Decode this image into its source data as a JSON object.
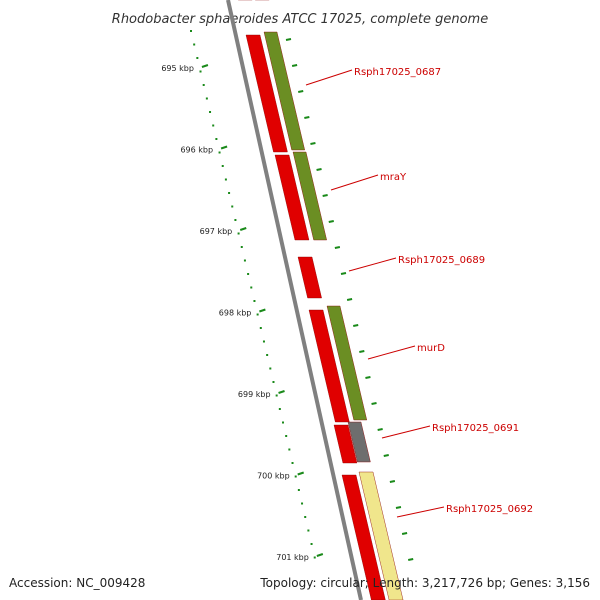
{
  "title": "Rhodobacter sphaeroides ATCC 17025, complete genome",
  "footer": {
    "accession": "Accession: NC_009428",
    "summary": "Topology: circular; Length: 3,217,726 bp; Genes: 3,156"
  },
  "colors": {
    "backbone": "#808080",
    "gene_forward": "#e00000",
    "gene_cds": "#6b8e23",
    "gene_gray": "#6e6e6e",
    "gene_pale": "#f0e68c",
    "tick": "#1a8a1a",
    "label": "#cc0000"
  },
  "diagram_data": {
    "kbp_ticks": [
      "695 kbp",
      "696 kbp",
      "697 kbp",
      "698 kbp",
      "699 kbp",
      "700 kbp",
      "701 kbp"
    ],
    "gene_labels": [
      "Rsph17025_0687",
      "mraY",
      "Rsph17025_0689",
      "murD",
      "Rsph17025_0691",
      "Rsph17025_0692"
    ]
  }
}
